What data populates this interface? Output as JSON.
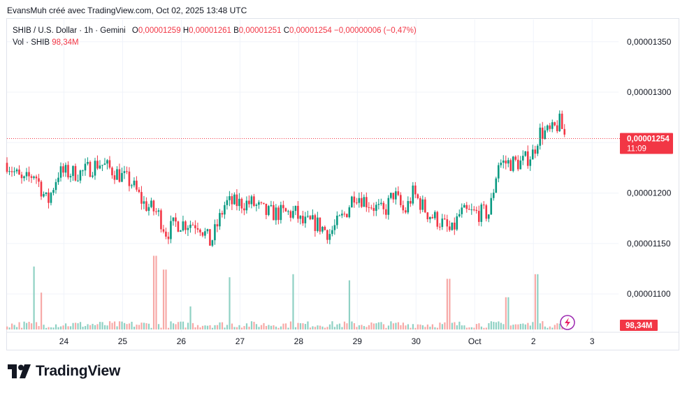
{
  "header_text": "EvansMuh créé avec TradingView.com, Oct 02, 2025 13:48 UTC",
  "legend": {
    "symbol": "SHIB / U.S. Dollar · 1h · Gemini",
    "o_key": "O",
    "o_val": "0,00001259",
    "h_key": "H",
    "h_val": "0,00001261",
    "b_key": "B",
    "b_val": "0,00001251",
    "c_key": "C",
    "c_val": "0,00001254",
    "change": "−0,00000006 (−0,47%)",
    "vol_key": "Vol · SHIB",
    "vol_val": "98,34M"
  },
  "brand": "TradingView",
  "colors": {
    "up": "#089981",
    "down": "#f23645",
    "up_vol": "#8fd1c4",
    "down_vol": "#f7a9a7",
    "grid": "#f0f3fa",
    "text": "#131722"
  },
  "chart_data": {
    "type": "candlestick",
    "symbol": "SHIB / U.S. Dollar",
    "interval": "1h",
    "exchange": "Gemini",
    "y_ticks": [
      "0,00001350",
      "0,00001300",
      "0,00001250",
      "0,00001200",
      "0,00001150",
      "0,00001100"
    ],
    "y_tick_values": [
      1.35e-05,
      1.3e-05,
      1.25e-05,
      1.2e-05,
      1.15e-05,
      1.1e-05
    ],
    "y_range": [
      1.062e-05,
      1.372e-05
    ],
    "x_ticks": [
      "24",
      "25",
      "26",
      "27",
      "28",
      "29",
      "30",
      "Oct",
      "2",
      "3"
    ],
    "x_tick_days": [
      24,
      25,
      26,
      27,
      28,
      29,
      30,
      31,
      32,
      33
    ],
    "x_range_days": [
      23.03,
      33.45
    ],
    "last_price_label": "0,00001254",
    "countdown": "11:09",
    "last_price": 1.254e-05,
    "volume_label": "98,34M",
    "volume_max_m": 1000,
    "candles_anchor_price": [
      [
        23.03,
        1.23e-05
      ],
      [
        23.3,
        1.21e-05
      ],
      [
        23.5,
        1.22e-05
      ],
      [
        23.72,
        1.19e-05
      ],
      [
        23.9,
        1.22e-05
      ],
      [
        24.3,
        1.22e-05
      ],
      [
        24.6,
        1.23e-05
      ],
      [
        24.9,
        1.22e-05
      ],
      [
        25.15,
        1.21e-05
      ],
      [
        25.35,
        1.19e-05
      ],
      [
        25.6,
        1.18e-05
      ],
      [
        25.75,
        1.16e-05
      ],
      [
        25.9,
        1.17e-05
      ],
      [
        26.05,
        1.17e-05
      ],
      [
        26.3,
        1.17e-05
      ],
      [
        26.5,
        1.15e-05
      ],
      [
        26.75,
        1.19e-05
      ],
      [
        26.95,
        1.19e-05
      ],
      [
        27.2,
        1.19e-05
      ],
      [
        27.45,
        1.18e-05
      ],
      [
        27.75,
        1.18e-05
      ],
      [
        27.95,
        1.18e-05
      ],
      [
        28.05,
        1.17e-05
      ],
      [
        28.3,
        1.17e-05
      ],
      [
        28.53,
        1.16e-05
      ],
      [
        28.8,
        1.18e-05
      ],
      [
        28.95,
        1.2e-05
      ],
      [
        29.2,
        1.19e-05
      ],
      [
        29.45,
        1.18e-05
      ],
      [
        29.62,
        1.2e-05
      ],
      [
        29.8,
        1.18e-05
      ],
      [
        29.95,
        1.2e-05
      ],
      [
        30.2,
        1.18e-05
      ],
      [
        30.45,
        1.17e-05
      ],
      [
        30.6,
        1.16e-05
      ],
      [
        30.75,
        1.18e-05
      ],
      [
        30.95,
        1.18e-05
      ],
      [
        31.25,
        1.18e-05
      ],
      [
        31.4,
        1.23e-05
      ],
      [
        31.6,
        1.23e-05
      ],
      [
        31.8,
        1.23e-05
      ],
      [
        32.0,
        1.24e-05
      ],
      [
        32.1,
        1.26e-05
      ],
      [
        32.3,
        1.26e-05
      ],
      [
        32.45,
        1.27e-05
      ],
      [
        32.55,
        1.254e-05
      ]
    ],
    "volume_spikes": [
      [
        23.5,
        820
      ],
      [
        23.62,
        480
      ],
      [
        25.55,
        960
      ],
      [
        25.72,
        780
      ],
      [
        26.15,
        300
      ],
      [
        26.83,
        680
      ],
      [
        27.9,
        720
      ],
      [
        28.85,
        640
      ],
      [
        30.55,
        660
      ],
      [
        31.55,
        420
      ],
      [
        32.05,
        720
      ]
    ]
  }
}
